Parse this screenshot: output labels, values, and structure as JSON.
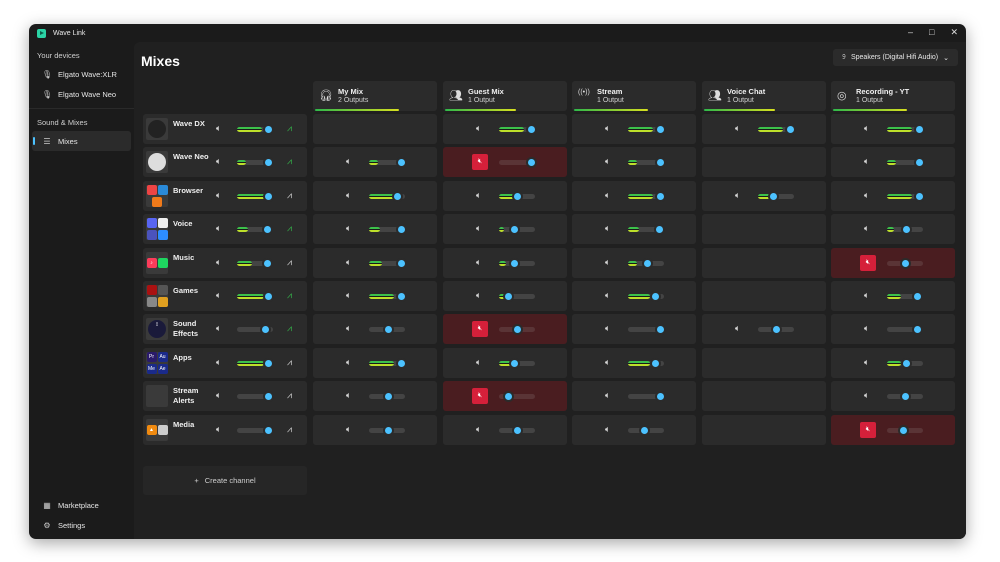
{
  "window": {
    "title": "Wave Link",
    "controls": [
      "–",
      "□",
      "✕"
    ]
  },
  "sidebar": {
    "devices_heading": "Your devices",
    "devices": [
      {
        "label": "Elgato Wave:XLR",
        "icon": "microphone-icon"
      },
      {
        "label": "Elgato Wave Neo",
        "icon": "microphone-icon"
      }
    ],
    "sound_heading": "Sound & Mixes",
    "nav": [
      {
        "label": "Mixes",
        "icon": "sliders-icon",
        "active": true
      }
    ],
    "bottom": [
      {
        "label": "Marketplace",
        "icon": "marketplace-icon"
      },
      {
        "label": "Settings",
        "icon": "gear-icon"
      }
    ]
  },
  "main": {
    "title": "Mixes",
    "output_device": "Speakers (Digital Hifi Audio)",
    "create_channel": "Create channel",
    "mixes": [
      {
        "name": "My Mix",
        "outputs": "2 Outputs",
        "icon": "headphones-icon",
        "meter": 0.68
      },
      {
        "name": "Guest Mix",
        "outputs": "1 Output",
        "icon": "people-icon",
        "meter": 0.57
      },
      {
        "name": "Stream",
        "outputs": "1 Output",
        "icon": "broadcast-icon",
        "meter": 0.6
      },
      {
        "name": "Voice Chat",
        "outputs": "1 Output",
        "icon": "people-icon",
        "meter": 0.57
      },
      {
        "name": "Recording - YT",
        "outputs": "1 Output",
        "icon": "obs-icon",
        "meter": 0.6
      }
    ],
    "channels": [
      {
        "name": "Wave DX",
        "icon": "wave-dx-icon",
        "level": 0.88,
        "meter": 0.7,
        "activity": "active",
        "cells": [
          null,
          {
            "level": 0.9,
            "meter": 0.7
          },
          {
            "level": 0.9,
            "meter": 0.7
          },
          {
            "level": 0.9,
            "meter": 0.7
          },
          {
            "level": 0.9,
            "meter": 0.7
          }
        ]
      },
      {
        "name": "Wave Neo",
        "icon": "wave-neo-icon",
        "level": 0.88,
        "meter": 0.25,
        "activity": "active",
        "cells": [
          {
            "level": 0.9,
            "meter": 0.25
          },
          {
            "level": 0.9,
            "meter": 0,
            "muted": true
          },
          {
            "level": 0.9,
            "meter": 0.25
          },
          null,
          {
            "level": 0.9,
            "meter": 0.25
          }
        ]
      },
      {
        "name": "Browser",
        "icon": "browser-icon",
        "level": 0.88,
        "meter": 0.8,
        "activity": "idle",
        "cells": [
          {
            "level": 0.8,
            "meter": 0.75
          },
          {
            "level": 0.5,
            "meter": 0.45
          },
          {
            "level": 0.9,
            "meter": 0.7
          },
          {
            "level": 0.42,
            "meter": 0.35
          },
          {
            "level": 0.9,
            "meter": 0.7
          }
        ]
      },
      {
        "name": "Voice",
        "icon": "voice-apps-icon",
        "level": 0.85,
        "meter": 0.3,
        "activity": "active",
        "cells": [
          {
            "level": 0.9,
            "meter": 0.3
          },
          {
            "level": 0.42,
            "meter": 0.15
          },
          {
            "level": 0.87,
            "meter": 0.3
          },
          null,
          {
            "level": 0.53,
            "meter": 0.2
          }
        ]
      },
      {
        "name": "Music",
        "icon": "music-apps-icon",
        "level": 0.85,
        "meter": 0.42,
        "activity": "idle",
        "cells": [
          {
            "level": 0.9,
            "meter": 0.35
          },
          {
            "level": 0.42,
            "meter": 0.2
          },
          {
            "level": 0.55,
            "meter": 0.25
          },
          null,
          {
            "level": 0.5,
            "meter": 0,
            "muted": true
          }
        ]
      },
      {
        "name": "Games",
        "icon": "games-icon",
        "level": 0.88,
        "meter": 0.75,
        "activity": "active",
        "cells": [
          {
            "level": 0.9,
            "meter": 0.7
          },
          {
            "level": 0.25,
            "meter": 0.2
          },
          {
            "level": 0.75,
            "meter": 0.6
          },
          null,
          {
            "level": 0.86,
            "meter": 0.4
          }
        ]
      },
      {
        "name": "Sound Effects",
        "icon": "sound-effects-icon",
        "level": 0.8,
        "meter": 0,
        "activity": "active",
        "cells": [
          {
            "level": 0.55,
            "meter": 0
          },
          {
            "level": 0.5,
            "meter": 0,
            "muted": true
          },
          {
            "level": 0.9,
            "meter": 0
          },
          {
            "level": 0.5,
            "meter": 0
          },
          {
            "level": 0.86,
            "meter": 0
          }
        ]
      },
      {
        "name": "Apps",
        "icon": "adobe-apps-icon",
        "level": 0.88,
        "meter": 0.75,
        "activity": "idle",
        "cells": [
          {
            "level": 0.9,
            "meter": 0.7
          },
          {
            "level": 0.42,
            "meter": 0.35
          },
          {
            "level": 0.75,
            "meter": 0.6
          },
          null,
          {
            "level": 0.53,
            "meter": 0.4
          }
        ]
      },
      {
        "name": "Stream Alerts",
        "icon": "stream-alerts-icon",
        "level": 0.88,
        "meter": 0,
        "activity": "idle",
        "cells": [
          {
            "level": 0.55,
            "meter": 0
          },
          {
            "level": 0.25,
            "meter": 0,
            "muted": true
          },
          {
            "level": 0.9,
            "meter": 0
          },
          null,
          {
            "level": 0.5,
            "meter": 0
          }
        ]
      },
      {
        "name": "Media",
        "icon": "media-apps-icon",
        "level": 0.88,
        "meter": 0,
        "activity": "idle",
        "cells": [
          {
            "level": 0.55,
            "meter": 0
          },
          {
            "level": 0.5,
            "meter": 0
          },
          {
            "level": 0.47,
            "meter": 0
          },
          null,
          {
            "level": 0.45,
            "meter": 0,
            "muted": true
          }
        ]
      }
    ]
  },
  "colors": {
    "accent": "#4cc2ff",
    "mute": "#d5203a",
    "activity_active": "#35b24a",
    "activity_idle": "#d0d0d0"
  }
}
